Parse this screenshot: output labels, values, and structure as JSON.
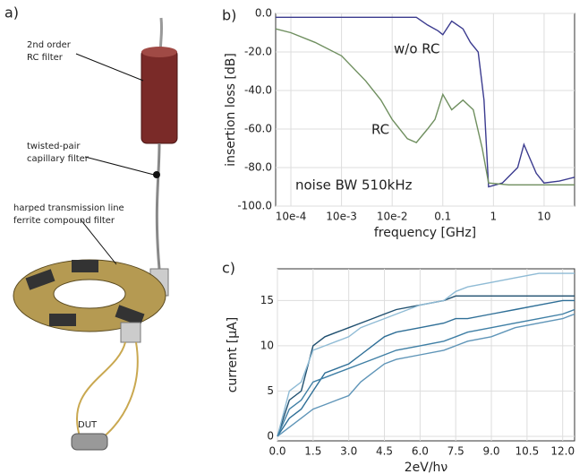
{
  "panels": [
    "a)",
    "b)",
    "c)"
  ],
  "diagram": {
    "labels": [
      "2nd order",
      "RC filter",
      "twisted-pair",
      "capillary filter",
      "harped transmission line",
      "ferrite compound filter",
      "DUT"
    ]
  },
  "chart_data": [
    {
      "type": "line",
      "xscale": "log",
      "grid": true,
      "xlabel": "frequency [GHz]",
      "ylabel": "insertion loss [dB]",
      "xlim": [
        5e-05,
        40
      ],
      "ylim": [
        -100,
        0
      ],
      "xticks": [
        {
          "value": 0.0001,
          "label": "10e-4"
        },
        {
          "value": 0.001,
          "label": "10e-3"
        },
        {
          "value": 0.01,
          "label": "10e-2"
        },
        0.1,
        1,
        10
      ],
      "yticks": [
        {
          "value": 0,
          "label": "0.0"
        },
        {
          "value": -20,
          "label": "-20.0"
        },
        {
          "value": -40,
          "label": "-40.0"
        },
        {
          "value": -60,
          "label": "-60.0"
        },
        {
          "value": -80,
          "label": "-80.0"
        },
        {
          "value": -100,
          "label": "-100.0"
        }
      ],
      "series": [
        {
          "name": "w/o RC",
          "color": "#3b3b8f",
          "x": [
            5e-05,
            0.001,
            0.03,
            0.05,
            0.08,
            0.1,
            0.15,
            0.25,
            0.35,
            0.5,
            0.65,
            0.8,
            1.5,
            3,
            4,
            5,
            7,
            10,
            20,
            40
          ],
          "values": [
            -2,
            -2,
            -2,
            -6,
            -9,
            -11,
            -4,
            -8,
            -15,
            -20,
            -45,
            -90,
            -88,
            -80,
            -68,
            -74,
            -83,
            -88,
            -87,
            -85
          ]
        },
        {
          "name": "RC",
          "color": "#6f8f5f",
          "x": [
            5e-05,
            0.0001,
            0.0003,
            0.001,
            0.003,
            0.006,
            0.01,
            0.02,
            0.03,
            0.05,
            0.07,
            0.1,
            0.15,
            0.25,
            0.4,
            0.6,
            0.8,
            2,
            10,
            40
          ],
          "values": [
            -8,
            -10,
            -15,
            -22,
            -35,
            -45,
            -55,
            -65,
            -67,
            -60,
            -55,
            -42,
            -50,
            -45,
            -50,
            -70,
            -88,
            -89,
            -89,
            -89
          ]
        }
      ],
      "annotations": [
        {
          "text": "w/o RC",
          "color": "#3b3b8f"
        },
        {
          "text": "RC",
          "color": "#6f8f5f"
        },
        {
          "text": "noise BW 510kHz",
          "color": "#bbbbbb"
        }
      ]
    },
    {
      "type": "line",
      "grid": true,
      "xlabel": "2eV/hν",
      "ylabel": "current [μA]",
      "xlim": [
        0,
        12.5
      ],
      "ylim": [
        -0.5,
        18.5
      ],
      "xticks": [
        {
          "value": 0,
          "label": "0.0"
        },
        1.5,
        {
          "value": 3,
          "label": "3.0"
        },
        4.5,
        {
          "value": 6,
          "label": "6.0"
        },
        7.5,
        {
          "value": 9,
          "label": "9.0"
        },
        10.5,
        {
          "value": 12,
          "label": "12.0"
        }
      ],
      "yticks": [
        0,
        5,
        10,
        15
      ],
      "x": [
        0,
        0.5,
        1,
        1.5,
        2,
        2.5,
        3,
        3.5,
        4,
        4.5,
        5,
        6,
        7,
        7.5,
        8,
        9,
        10,
        11,
        12,
        12.5
      ],
      "series": [
        {
          "color": "#1f4f6f",
          "values": [
            0,
            4,
            5,
            10,
            11,
            11.5,
            12,
            12.5,
            13,
            13.5,
            14,
            14.5,
            15,
            15.5,
            15.5,
            15.5,
            15.5,
            15.5,
            15.5,
            15.5
          ]
        },
        {
          "color": "#2f6f97",
          "values": [
            0,
            2,
            3,
            5,
            7,
            7.5,
            8,
            9,
            10,
            11,
            11.5,
            12,
            12.5,
            13,
            13,
            13.5,
            14,
            14.5,
            15,
            15
          ]
        },
        {
          "color": "#5f95b8",
          "values": [
            0,
            1,
            2,
            3,
            3.5,
            4,
            4.5,
            6,
            7,
            8,
            8.5,
            9,
            9.5,
            10,
            10.5,
            11,
            12,
            12.5,
            13,
            13.5
          ]
        },
        {
          "color": "#8fbbd5",
          "values": [
            0,
            5,
            6,
            9.5,
            10,
            10.5,
            11,
            12,
            12.5,
            13,
            13.5,
            14.5,
            15,
            16,
            16.5,
            17,
            17.5,
            18,
            18,
            18
          ]
        },
        {
          "color": "#3f7fa5",
          "values": [
            0,
            3,
            4,
            6,
            6.5,
            7,
            7.5,
            8,
            8.5,
            9,
            9.5,
            10,
            10.5,
            11,
            11.5,
            12,
            12.5,
            13,
            13.5,
            14
          ]
        }
      ]
    }
  ]
}
